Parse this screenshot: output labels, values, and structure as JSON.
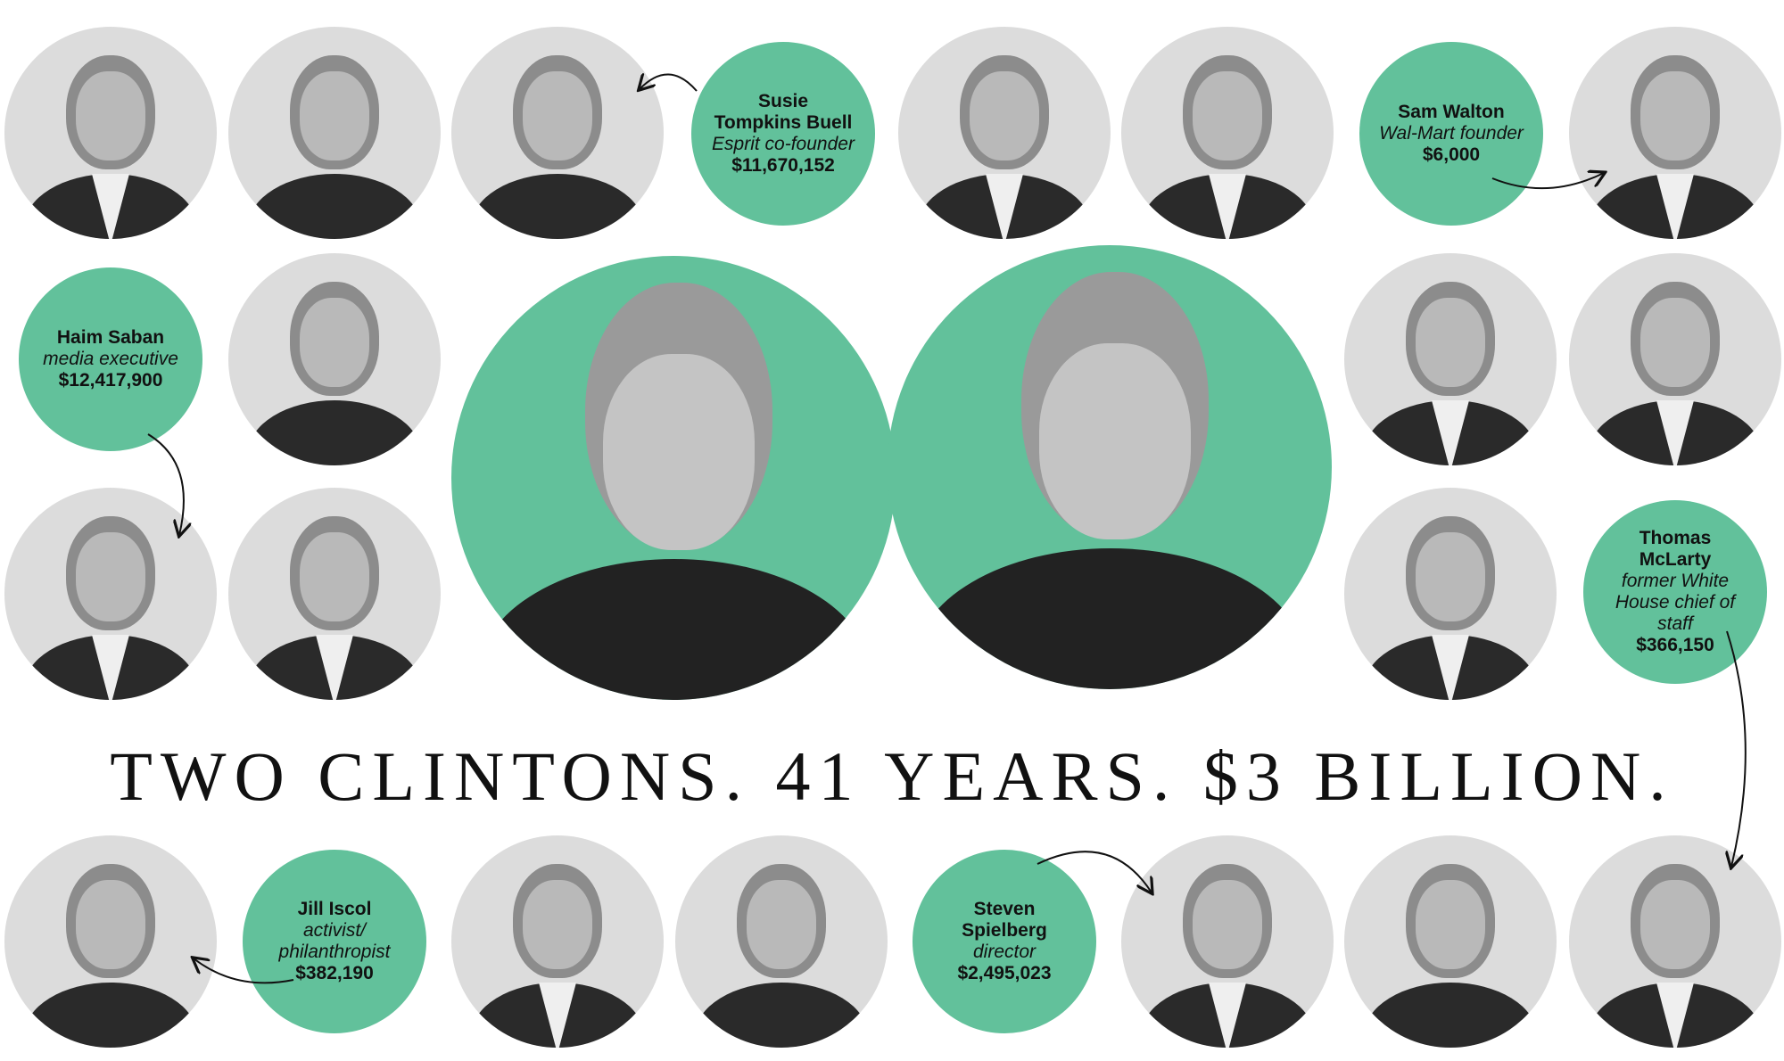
{
  "headline": "TWO CLINTONS. 41 YEARS. $3 BILLION.",
  "accent_color": "#62c19b",
  "featured_donors": [
    {
      "name_line1": "Susie",
      "name_line2": "Tompkins Buell",
      "role": "Esprit co-founder",
      "amount": "$11,670,152"
    },
    {
      "name_line1": "Sam Walton",
      "name_line2": "",
      "role": "Wal-Mart founder",
      "amount": "$6,000"
    },
    {
      "name_line1": "Haim Saban",
      "name_line2": "",
      "role": "media executive",
      "amount": "$12,417,900"
    },
    {
      "name_line1": "Thomas",
      "name_line2": "McLarty",
      "role": "former White House chief of staff",
      "amount": "$366,150"
    },
    {
      "name_line1": "Jill Iscol",
      "name_line2": "",
      "role": "activist/ philanthropist",
      "amount": "$382,190"
    },
    {
      "name_line1": "Steven",
      "name_line2": "Spielberg",
      "role": "director",
      "amount": "$2,495,023"
    }
  ]
}
